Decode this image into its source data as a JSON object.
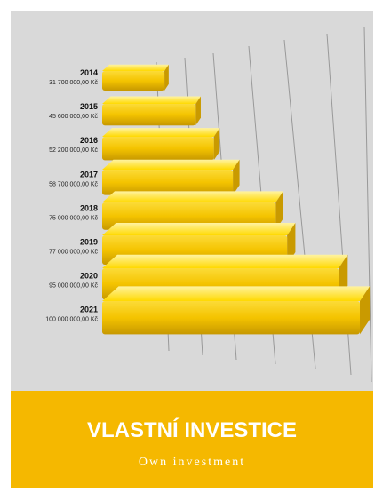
{
  "chart_data": {
    "type": "bar",
    "orientation": "horizontal",
    "title": "VLASTNÍ INVESTICE",
    "subtitle": "Own investment",
    "categories": [
      "2014",
      "2015",
      "2016",
      "2017",
      "2018",
      "2019",
      "2020",
      "2021"
    ],
    "values": [
      31700000,
      45600000,
      52200000,
      58700000,
      75000000,
      77000000,
      95000000,
      100000000
    ],
    "value_labels": [
      "31 700 000,00 Kč",
      "45 600 000,00 Kč",
      "52 200 000,00 Kč",
      "58 700 000,00 Kč",
      "75 000 000,00 Kč",
      "77 000 000,00 Kč",
      "95 000 000,00 Kč",
      "100 000 000,00 Kč"
    ],
    "color": "#f2c200"
  }
}
